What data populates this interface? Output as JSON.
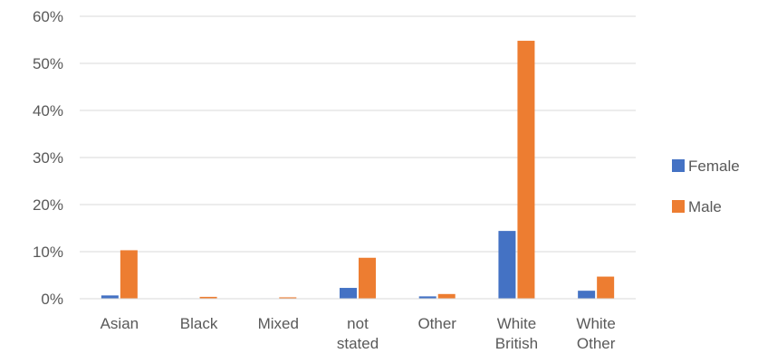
{
  "chart_data": {
    "type": "bar",
    "categories": [
      [
        "Asian"
      ],
      [
        "Black"
      ],
      [
        "Mixed"
      ],
      [
        "not",
        "stated"
      ],
      [
        "Other"
      ],
      [
        "White",
        "British"
      ],
      [
        "White",
        "Other"
      ]
    ],
    "series": [
      {
        "name": "Female",
        "color": "#4472C4",
        "values": [
          0.7,
          0.1,
          0.1,
          2.3,
          0.5,
          14.4,
          1.7
        ]
      },
      {
        "name": "Male",
        "color": "#ED7D31",
        "values": [
          10.3,
          0.4,
          0.3,
          8.7,
          1.0,
          54.8,
          4.7
        ]
      }
    ],
    "yticks": [
      "0%",
      "10%",
      "20%",
      "30%",
      "40%",
      "50%",
      "60%"
    ],
    "ylim": [
      0,
      60
    ],
    "grid": true,
    "legend_position": "right"
  }
}
